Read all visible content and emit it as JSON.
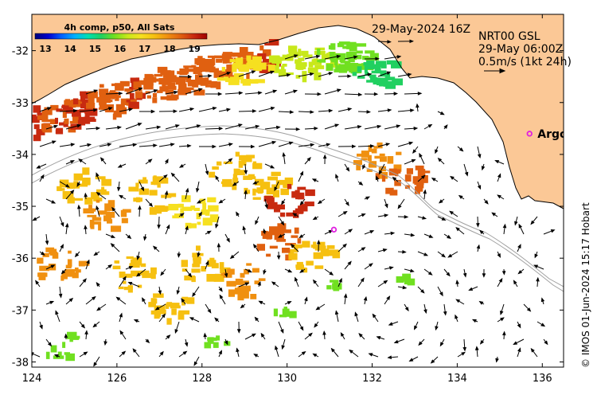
{
  "title": {
    "date": "29-May-2024 16Z",
    "product": "NRT00 GSL",
    "time": "29-May 06:00Z",
    "scale": "0.5m/s (1kt 24h)"
  },
  "colorbar": {
    "title": "4h comp, p50, All Sats",
    "ticks": [
      "13",
      "14",
      "15",
      "16",
      "17",
      "18",
      "19"
    ],
    "colors": [
      "#00007a",
      "#0000d0",
      "#0060ff",
      "#00b0ff",
      "#00e0b0",
      "#20d060",
      "#70e020",
      "#c8e81a",
      "#f6e020",
      "#f6c010",
      "#f09010",
      "#e06010",
      "#c82a10",
      "#a00000"
    ]
  },
  "axes": {
    "x_ticks": [
      "124",
      "126",
      "128",
      "130",
      "132",
      "134",
      "136"
    ],
    "y_ticks": [
      "-32",
      "-33",
      "-34",
      "-35",
      "-36",
      "-37",
      "-38"
    ],
    "xlim": [
      124,
      136.5
    ],
    "ylim": [
      -38.1,
      -31.3
    ]
  },
  "markers": [
    {
      "label": "Argo",
      "lon": 135.7,
      "lat": -33.6,
      "labeled": true
    },
    {
      "label": "",
      "lon": 131.1,
      "lat": -35.45,
      "labeled": false
    }
  ],
  "credit": "© IMOS 01-Jun-2024 15:17 Hobart",
  "colors": {
    "land": "#fbc896",
    "marker": "#e020e0",
    "bathy_line": "#a0a0a0"
  }
}
